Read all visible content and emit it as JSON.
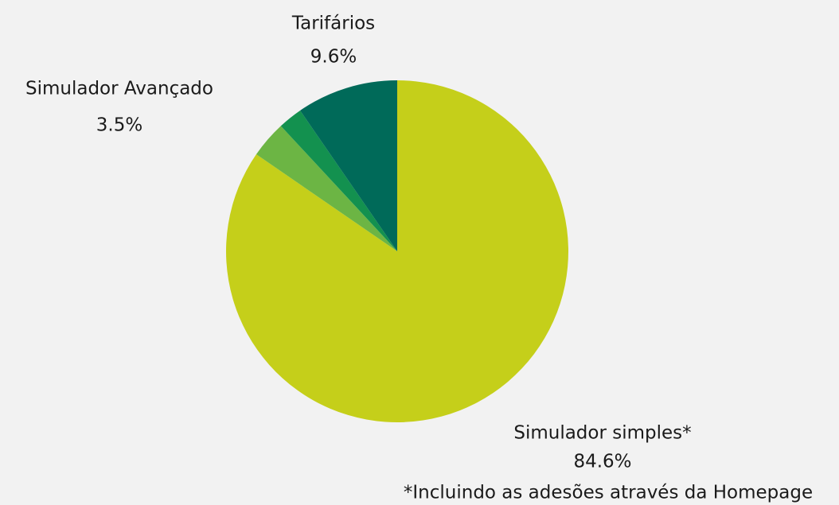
{
  "chart_data": {
    "type": "pie",
    "categories": [
      "Simulador simples*",
      "Simulador Avançado",
      null,
      "Tarifários"
    ],
    "values": [
      84.6,
      3.5,
      2.3,
      9.6
    ],
    "value_labels": [
      "84.6%",
      "3.5%",
      null,
      "9.6%"
    ],
    "colors": [
      "#c5cf1a",
      "#6cb544",
      "#13914f",
      "#006a59"
    ],
    "annotation": "*Incluindo as adesões através da Homepage"
  }
}
